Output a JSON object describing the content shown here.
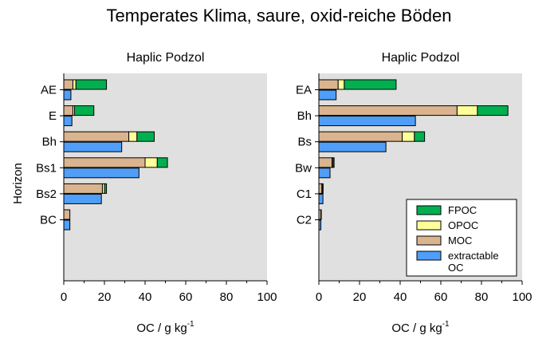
{
  "figure": {
    "title": "Temperates Klima, saure, oxid-reiche Böden",
    "ylabel": "Horizon"
  },
  "chart_data": [
    {
      "type": "bar",
      "orientation": "horizontal",
      "title": "Haplic Podzol",
      "xlabel_main": "OC / g kg",
      "xlabel_sup": "-1",
      "xlim": [
        0,
        100
      ],
      "xticks": [
        0,
        20,
        40,
        60,
        80,
        100
      ],
      "categories": [
        "AE",
        "E",
        "Bh",
        "Bs1",
        "Bs2",
        "BC"
      ],
      "stacked_series": [
        {
          "name": "MOC",
          "color": "#d9b48f",
          "values": [
            4.5,
            4.5,
            32,
            40,
            19,
            3
          ]
        },
        {
          "name": "OPOC",
          "color": "#ffff99",
          "values": [
            1.5,
            0.8,
            4,
            6,
            1,
            0
          ]
        },
        {
          "name": "FPOC",
          "color": "#00b050",
          "values": [
            15,
            9.5,
            8.5,
            5,
            1,
            0
          ]
        }
      ],
      "extractable_series": {
        "name": "extractable OC",
        "color": "#4f9ef8",
        "values": [
          3.5,
          4,
          28.5,
          37,
          18.5,
          3
        ]
      },
      "legend": null
    },
    {
      "type": "bar",
      "orientation": "horizontal",
      "title": "Haplic Podzol",
      "xlabel_main": "OC / g kg",
      "xlabel_sup": "-1",
      "xlim": [
        0,
        100
      ],
      "xticks": [
        0,
        20,
        40,
        60,
        80,
        100
      ],
      "categories": [
        "EA",
        "Bh",
        "Bs",
        "Bw",
        "C1",
        "C2"
      ],
      "stacked_series": [
        {
          "name": "MOC",
          "color": "#d9b48f",
          "values": [
            9.5,
            68,
            41,
            6.5,
            1.5,
            1
          ]
        },
        {
          "name": "OPOC",
          "color": "#ffff99",
          "values": [
            3,
            10,
            6,
            0.5,
            0.3,
            0
          ]
        },
        {
          "name": "FPOC",
          "color": "#00b050",
          "values": [
            25.5,
            15,
            5,
            0.5,
            0.3,
            0.2
          ]
        }
      ],
      "extractable_series": {
        "name": "extractable OC",
        "color": "#4f9ef8",
        "values": [
          8.5,
          47.5,
          33,
          5.5,
          2,
          1
        ]
      },
      "legend": {
        "position": "bottom-right",
        "entries": [
          {
            "label": "FPOC",
            "color": "#00b050"
          },
          {
            "label": "OPOC",
            "color": "#ffff99"
          },
          {
            "label": "MOC",
            "color": "#d9b48f"
          },
          {
            "label": "extractable",
            "label2": "OC",
            "color": "#4f9ef8"
          }
        ]
      }
    }
  ]
}
